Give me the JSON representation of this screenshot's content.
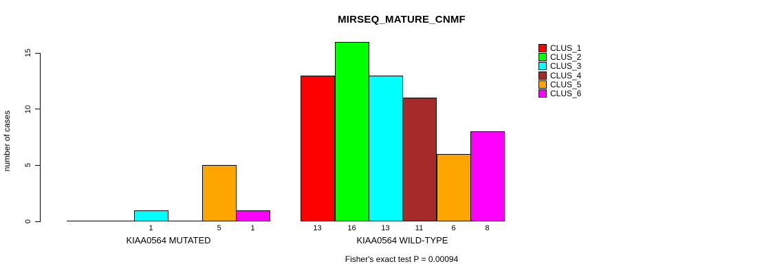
{
  "chart_data": {
    "type": "bar",
    "title": "MIRSEQ_MATURE_CNMF",
    "ylabel": "number of cases",
    "xlabel": "",
    "ylim": [
      0,
      15
    ],
    "yticks": [
      0,
      5,
      10,
      15
    ],
    "grid": false,
    "legend_position": "top-right-inside",
    "categories": [
      "KIAA0564 MUTATED",
      "KIAA0564 WILD-TYPE"
    ],
    "series": [
      {
        "name": "CLUS_1",
        "color": "#FF0000",
        "values": [
          0,
          13
        ]
      },
      {
        "name": "CLUS_2",
        "color": "#00FF00",
        "values": [
          0,
          16
        ]
      },
      {
        "name": "CLUS_3",
        "color": "#00FFFF",
        "values": [
          1,
          13
        ]
      },
      {
        "name": "CLUS_4",
        "color": "#A52A2A",
        "values": [
          0,
          11
        ]
      },
      {
        "name": "CLUS_5",
        "color": "#FFA500",
        "values": [
          5,
          6
        ]
      },
      {
        "name": "CLUS_6",
        "color": "#FF00FF",
        "values": [
          1,
          8
        ]
      }
    ],
    "bar_value_labels": {
      "KIAA0564 MUTATED": [
        null,
        null,
        1,
        null,
        5,
        1
      ],
      "KIAA0564 WILD-TYPE": [
        13,
        16,
        13,
        11,
        6,
        8
      ]
    },
    "annotation": "Fisher's exact test P = 0.00094"
  },
  "colors": {
    "background": "#FFFFFF",
    "axis": "#000000",
    "text": "#000000"
  }
}
